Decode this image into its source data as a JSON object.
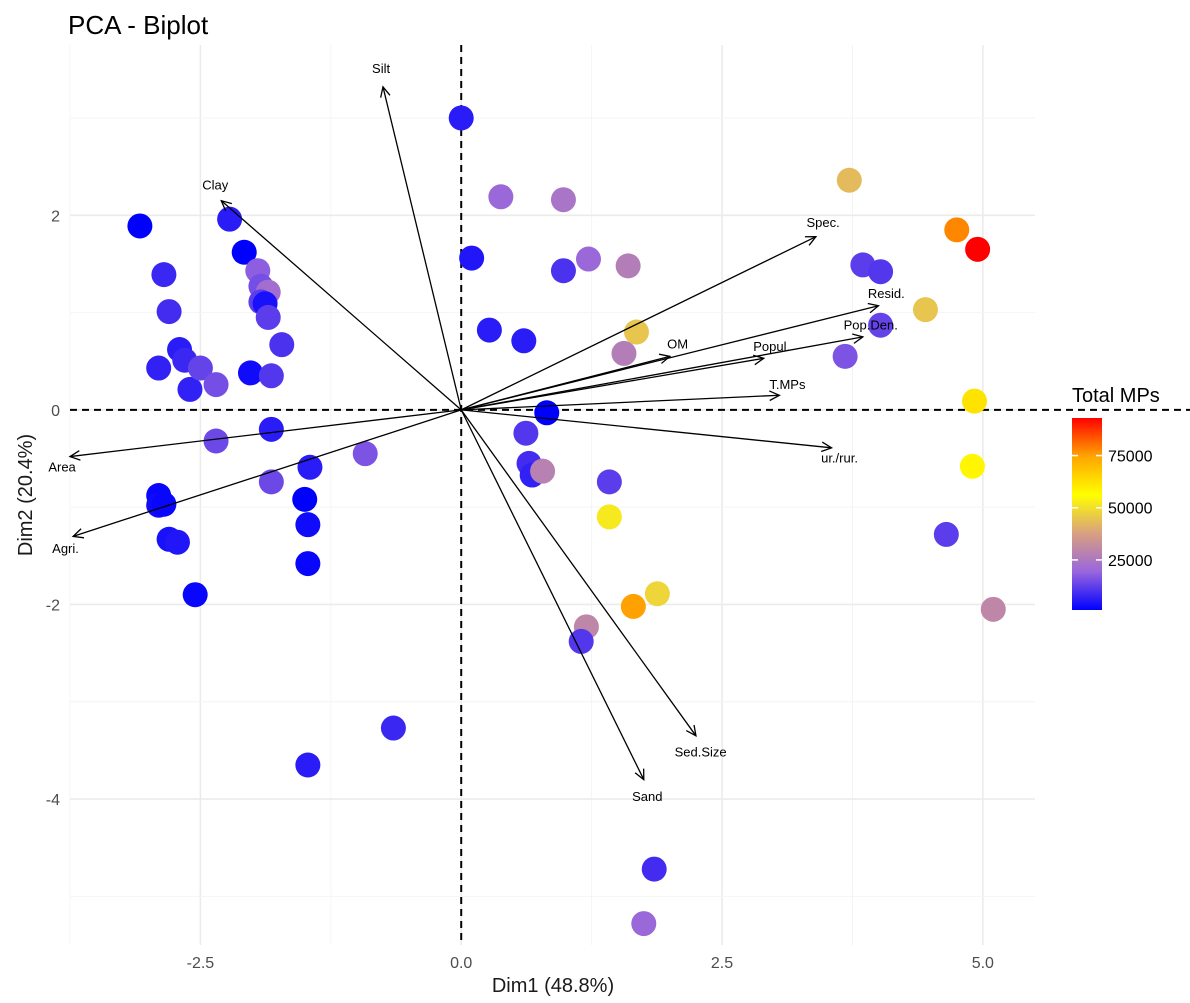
{
  "chart_data": {
    "type": "scatter",
    "title": "PCA - Biplot",
    "xlabel": "Dim1 (48.8%)",
    "ylabel": "Dim2 (20.4%)",
    "xlim": [
      -3.75,
      5.5
    ],
    "ylim": [
      -5.5,
      3.75
    ],
    "x_ticks": [
      -2.5,
      0.0,
      2.5,
      5.0
    ],
    "x_tick_labels": [
      "-2.5",
      "0.0",
      "2.5",
      "5.0"
    ],
    "y_ticks": [
      2,
      0,
      -2,
      -4
    ],
    "y_tick_labels": [
      "2",
      "0",
      "-2",
      "-4"
    ],
    "grid": true,
    "reference_lines": {
      "x": 0,
      "y": 0,
      "style": "dashed"
    },
    "legend": {
      "title": "Total MPs",
      "placement": "right",
      "range": [
        1000,
        93000
      ],
      "ticks": [
        25000,
        50000,
        75000
      ],
      "tick_labels": [
        "25000",
        "50000",
        "75000"
      ],
      "colors": [
        "#0000ff",
        "#9966dd",
        "#d9a080",
        "#ffff00",
        "#ffa500",
        "#ff0000"
      ]
    },
    "points": [
      {
        "x": -3.08,
        "y": 1.89,
        "v": 1000
      },
      {
        "x": -2.85,
        "y": 1.39,
        "v": 8000
      },
      {
        "x": -2.8,
        "y": 1.01,
        "v": 9000
      },
      {
        "x": -2.7,
        "y": 0.62,
        "v": 6000
      },
      {
        "x": -2.65,
        "y": 0.51,
        "v": 8000
      },
      {
        "x": -2.9,
        "y": 0.43,
        "v": 7000
      },
      {
        "x": -2.6,
        "y": 0.21,
        "v": 7000
      },
      {
        "x": -2.5,
        "y": 0.43,
        "v": 13000
      },
      {
        "x": -2.35,
        "y": 0.26,
        "v": 15000
      },
      {
        "x": -2.22,
        "y": 1.96,
        "v": 6000
      },
      {
        "x": -2.08,
        "y": 1.62,
        "v": 1000
      },
      {
        "x": -1.95,
        "y": 1.43,
        "v": 18000
      },
      {
        "x": -1.92,
        "y": 1.27,
        "v": 15000
      },
      {
        "x": -1.85,
        "y": 1.21,
        "v": 22000
      },
      {
        "x": -1.92,
        "y": 1.11,
        "v": 12000
      },
      {
        "x": -1.88,
        "y": 1.09,
        "v": 4000
      },
      {
        "x": -1.85,
        "y": 0.95,
        "v": 12000
      },
      {
        "x": -1.72,
        "y": 0.67,
        "v": 10000
      },
      {
        "x": -2.02,
        "y": 0.38,
        "v": 3000
      },
      {
        "x": -1.82,
        "y": 0.35,
        "v": 11000
      },
      {
        "x": -1.82,
        "y": -0.2,
        "v": 6000
      },
      {
        "x": -2.35,
        "y": -0.32,
        "v": 14000
      },
      {
        "x": -1.82,
        "y": -0.74,
        "v": 14000
      },
      {
        "x": -1.45,
        "y": -0.59,
        "v": 6000
      },
      {
        "x": -1.5,
        "y": -0.92,
        "v": 1000
      },
      {
        "x": -1.47,
        "y": -1.18,
        "v": 3000
      },
      {
        "x": -1.47,
        "y": -1.58,
        "v": 2000
      },
      {
        "x": -0.92,
        "y": -0.45,
        "v": 16000
      },
      {
        "x": -2.9,
        "y": -0.88,
        "v": 2000
      },
      {
        "x": -2.9,
        "y": -0.98,
        "v": 3000
      },
      {
        "x": -2.85,
        "y": -0.97,
        "v": 2000
      },
      {
        "x": -2.8,
        "y": -1.33,
        "v": 4000
      },
      {
        "x": -2.72,
        "y": -1.36,
        "v": 5000
      },
      {
        "x": -2.55,
        "y": -1.9,
        "v": 2000
      },
      {
        "x": -0.65,
        "y": -3.27,
        "v": 8000
      },
      {
        "x": -1.47,
        "y": -3.65,
        "v": 6000
      },
      {
        "x": 0.0,
        "y": 3.0,
        "v": 6000
      },
      {
        "x": 0.38,
        "y": 2.19,
        "v": 20000
      },
      {
        "x": 0.98,
        "y": 2.16,
        "v": 24000
      },
      {
        "x": 0.1,
        "y": 1.56,
        "v": 5000
      },
      {
        "x": 0.98,
        "y": 1.43,
        "v": 10000
      },
      {
        "x": 1.22,
        "y": 1.55,
        "v": 20000
      },
      {
        "x": 1.6,
        "y": 1.48,
        "v": 27000
      },
      {
        "x": 0.27,
        "y": 0.82,
        "v": 6000
      },
      {
        "x": 0.6,
        "y": 0.71,
        "v": 6000
      },
      {
        "x": 1.68,
        "y": 0.8,
        "v": 45000
      },
      {
        "x": 1.56,
        "y": 0.58,
        "v": 27000
      },
      {
        "x": 0.82,
        "y": -0.03,
        "v": 1000
      },
      {
        "x": 0.62,
        "y": -0.24,
        "v": 11000
      },
      {
        "x": 0.65,
        "y": -0.55,
        "v": 9000
      },
      {
        "x": 0.68,
        "y": -0.67,
        "v": 7000
      },
      {
        "x": 0.78,
        "y": -0.63,
        "v": 28000
      },
      {
        "x": 1.42,
        "y": -0.74,
        "v": 12000
      },
      {
        "x": 1.42,
        "y": -1.1,
        "v": 52000
      },
      {
        "x": 1.88,
        "y": -1.89,
        "v": 48000
      },
      {
        "x": 1.65,
        "y": -2.02,
        "v": 75000
      },
      {
        "x": 1.2,
        "y": -2.23,
        "v": 30000
      },
      {
        "x": 1.15,
        "y": -2.38,
        "v": 11000
      },
      {
        "x": 1.85,
        "y": -4.72,
        "v": 9000
      },
      {
        "x": 1.75,
        "y": -5.28,
        "v": 20000
      },
      {
        "x": 3.72,
        "y": 2.36,
        "v": 43000
      },
      {
        "x": 3.85,
        "y": 1.49,
        "v": 12000
      },
      {
        "x": 4.02,
        "y": 1.42,
        "v": 11000
      },
      {
        "x": 4.45,
        "y": 1.03,
        "v": 45000
      },
      {
        "x": 4.02,
        "y": 0.87,
        "v": 13000
      },
      {
        "x": 3.68,
        "y": 0.55,
        "v": 16000
      },
      {
        "x": 4.75,
        "y": 1.85,
        "v": 78000
      },
      {
        "x": 4.95,
        "y": 1.65,
        "v": 93000
      },
      {
        "x": 4.92,
        "y": 0.09,
        "v": 62000
      },
      {
        "x": 4.9,
        "y": -0.58,
        "v": 58000
      },
      {
        "x": 4.65,
        "y": -1.28,
        "v": 12000
      },
      {
        "x": 5.1,
        "y": -2.05,
        "v": 30000
      }
    ],
    "variables": [
      {
        "name": "Silt",
        "x": -0.75,
        "y": 3.32
      },
      {
        "name": "Clay",
        "x": -2.3,
        "y": 2.15
      },
      {
        "name": "Spec.",
        "x": 3.4,
        "y": 1.78
      },
      {
        "name": "Resid.",
        "x": 4.0,
        "y": 1.07
      },
      {
        "name": "Pop.Den.",
        "x": 3.85,
        "y": 0.75
      },
      {
        "name": "Popul.",
        "x": 2.9,
        "y": 0.53
      },
      {
        "name": "OM",
        "x": 2.0,
        "y": 0.55
      },
      {
        "name": "T.MPs",
        "x": 3.05,
        "y": 0.15
      },
      {
        "name": "ur./rur.",
        "x": 3.55,
        "y": -0.39
      },
      {
        "name": "Area",
        "x": -3.75,
        "y": -0.48
      },
      {
        "name": "Agri.",
        "x": -3.72,
        "y": -1.3
      },
      {
        "name": "Sed.Size",
        "x": 2.25,
        "y": -3.35
      },
      {
        "name": "Sand",
        "x": 1.75,
        "y": -3.8
      }
    ]
  }
}
